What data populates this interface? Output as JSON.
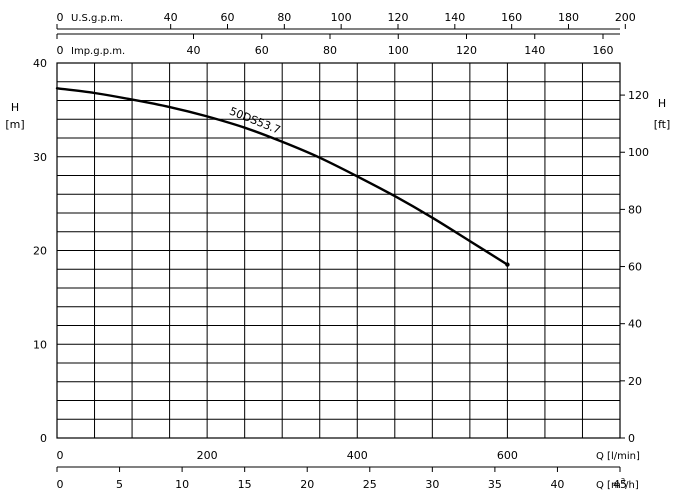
{
  "chart_data": {
    "type": "line",
    "title": "",
    "grid": true,
    "axes": {
      "y_left": {
        "label_lines": [
          "H",
          "[m]"
        ],
        "range": [
          0,
          40
        ],
        "ticks": [
          "0",
          "10",
          "20",
          "30",
          "40"
        ]
      },
      "y_right": {
        "label_lines": [
          "H",
          "[ft]"
        ],
        "range": [
          0,
          131.23
        ],
        "ticks": [
          "0",
          "20",
          "40",
          "60",
          "80",
          "100",
          "120"
        ]
      },
      "x_bottom_1": {
        "label": "Q [l/min]",
        "range": [
          0,
          750
        ],
        "ticks": [
          "0",
          "200",
          "400",
          "600"
        ]
      },
      "x_bottom_2": {
        "label_prefix": "Q [m",
        "label_sup": "3",
        "label_suffix": "/h]",
        "range": [
          0,
          45
        ],
        "ticks": [
          "0",
          "5",
          "10",
          "15",
          "20",
          "25",
          "30",
          "35",
          "40",
          "45"
        ]
      },
      "x_top_1": {
        "label": "U.S.g.p.m.",
        "range": [
          0,
          198.13
        ],
        "ticks": [
          "0",
          "40",
          "60",
          "80",
          "100",
          "120",
          "140",
          "160",
          "180",
          "200"
        ]
      },
      "x_top_2": {
        "label": "Imp.g.p.m.",
        "range": [
          0,
          164.98
        ],
        "ticks": [
          "0",
          "40",
          "60",
          "80",
          "100",
          "120",
          "140",
          "160"
        ]
      }
    },
    "series": [
      {
        "name": "50DS53.7",
        "x_unit": "l/min",
        "y_unit": "m",
        "x": [
          0,
          50,
          100,
          150,
          200,
          250,
          300,
          350,
          400,
          450,
          500,
          550,
          600
        ],
        "y": [
          37.3,
          36.8,
          36.1,
          35.3,
          34.3,
          33.1,
          31.6,
          29.9,
          27.9,
          25.8,
          23.5,
          21.0,
          18.5
        ]
      }
    ]
  }
}
